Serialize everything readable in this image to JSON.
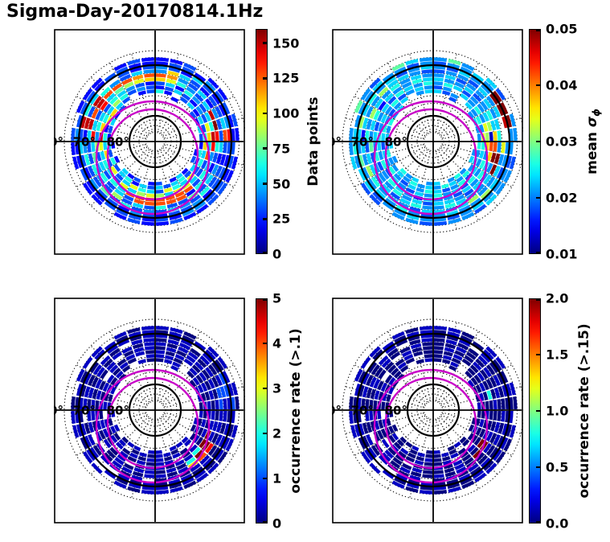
{
  "title": "Sigma-Day-20170814.1Hz",
  "colors": {
    "background": "#ffffff",
    "grid": "#000000",
    "oval_magenta": "#c800c8",
    "colormap": "jet"
  },
  "polar_grid": {
    "lat_tick_labels": [
      "60°",
      "70°",
      "80°"
    ],
    "lat_tick_values": [
      60,
      70,
      80
    ],
    "spoke_step_deg": 15,
    "spoke_count": 24,
    "solid_circle_lats": [
      80,
      65
    ],
    "dotted_circle_lats": [
      87.5,
      85,
      82.5,
      77.5,
      75,
      72.5,
      70,
      67.5,
      62.5,
      60
    ],
    "oval_circles_note": "two magenta model auroral-oval circles offset toward bottom (midnight)"
  },
  "chart_data": [
    {
      "id": "data_points",
      "type": "heatmap",
      "projection": "polar",
      "colorbar_label": "Data points",
      "colormap": "jet",
      "vmin": 0,
      "vmax": 160,
      "colorbar_tick_values": [
        0,
        25,
        50,
        75,
        100,
        125,
        150
      ],
      "colorbar_tick_labels": [
        "0",
        "25",
        "50",
        "75",
        "100",
        "125",
        "150"
      ],
      "sector_width_deg": 10,
      "n_rings": 11,
      "cell_encoding": "hex level 0-15, value = vmin + level/15*(vmax-vmin); '.' = no data; ring 0 = outermost; sector 0 starts at 12 o'clock going clockwise",
      "cells": [
        [
          "223.22",
          ".32.22",
          "332232",
          "232.22",
          ".223.2",
          "22.232"
        ],
        [
          "233243",
          "322332",
          "334423",
          "233322",
          "322433",
          "323322"
        ],
        [
          "432532",
          "24d323",
          "324332",
          "342334",
          "2353e6",
          "5..323"
        ],
        [
          "4a5323",
          "35c323",
          "363453",
          "436373",
          "3642e3",
          "e64354"
        ],
        [
          "cb4352",
          "433524",
          "537336",
          "353834",
          "6335ec",
          "ecccbc"
        ],
        [
          "a96435",
          "efd632",
          "462ccc",
          "cc3536",
          "475d53",
          "d5789a"
        ],
        [
          "352643",
          "56ed45",
          "63cccc",
          "ccc563",
          "538465",
          "365432"
        ],
        [
          "235324",
          "39a5c3",
          "359958",
          "985935",
          "659ea6",
          "586343"
        ],
        [
          "62.352",
          "536a56",
          "395693",
          "569539",
          "3a5629",
          "a53.23"
        ],
        [
          "..2..3",
          "253263",
          "536535",
          "352653",
          "635235",
          "23...."
        ],
        [
          "......",
          "....23",
          ".252.3",
          "2.325.",
          "2.2...",
          "......"
        ]
      ]
    },
    {
      "id": "mean_sigma_phi",
      "type": "heatmap",
      "projection": "polar",
      "colorbar_label": "mean σϕ",
      "colorbar_label_parts": {
        "prefix": "mean ",
        "symbol": "σ",
        "subscript": "ϕ"
      },
      "colormap": "jet",
      "vmin": 0.01,
      "vmax": 0.05,
      "colorbar_tick_values": [
        0.01,
        0.02,
        0.03,
        0.04,
        0.05
      ],
      "colorbar_tick_labels": [
        "0.01",
        "0.02",
        "0.03",
        "0.04",
        "0.05"
      ],
      "sector_width_deg": 10,
      "n_rings": 11,
      "cell_encoding": "hex level 0-15, value = vmin + level/15*(vmax-vmin); '.' = no data",
      "cells": [
        [
          "474.53",
          ".44.34",
          "453443",
          "344.33",
          ".544.7",
          "43.754"
        ],
        [
          "34454f",
          "ff4434",
          "445434",
          "454435",
          "546544",
          "454434"
        ],
        [
          "43544f",
          "fe.443",
          "584454",
          "346454",
          "474585",
          "645345"
        ],
        [
          "344354",
          "5..945",
          "448545",
          "534546",
          "845254",
          "485543"
        ],
        [
          "453445",
          "4564ff",
          "544564",
          "465354",
          "553648",
          "546454"
        ],
        [
          "544534",
          "65acf4",
          "453455",
          "354644",
          "437456",
          "254465"
        ],
        [
          "465344",
          "581ca5",
          "645344",
          "524564",
          "364534",
          "536546"
        ],
        [
          "34.546",
          "498a46",
          "463546",
          "453453",
          "645645",
          "463454"
        ],
        [
          "534.54",
          "649654",
          "536435",
          "645346",
          "453564",
          "345.45"
        ],
        [
          "..3..4",
          "544645",
          "464564",
          "546454",
          "464546",
          "45...."
        ],
        [
          "......",
          "....45",
          ".464.5",
          "4.546.",
          "4.5...",
          "......"
        ]
      ]
    },
    {
      "id": "occurrence_rate_gt_p1",
      "type": "heatmap",
      "projection": "polar",
      "colorbar_label": "occurrence rate (>.1)",
      "colormap": "jet",
      "vmin": 0,
      "vmax": 5,
      "colorbar_tick_values": [
        0,
        1,
        2,
        3,
        4,
        5
      ],
      "colorbar_tick_labels": [
        "0",
        "1",
        "2",
        "3",
        "4",
        "5"
      ],
      "sector_width_deg": 10,
      "n_rings": 11,
      "cell_encoding": "hex level 0-15, value = vmin + level/15*(vmax-vmin); '.' = no data",
      "cells": [
        [
          "110.11",
          ".10.11",
          "011011",
          "101.11",
          ".110.1",
          "11.101"
        ],
        [
          "010110",
          "113101",
          "101101",
          "1101.1",
          "011010",
          ".11011"
        ],
        [
          "101.10",
          "331011",
          "010110",
          "101..1",
          "110101",
          "0.1101"
        ],
        [
          "011010",
          "131101",
          "011010",
          ".10110",
          "10.110",
          "110.11"
        ],
        [
          "101101",
          "033110",
          "dca101",
          "101101",
          ".11010",
          "101101"
        ],
        [
          "010110",
          "101011",
          "ff6010",
          "11010.",
          "101101",
          "01.011"
        ],
        [
          "101101",
          "01011f",
          "f61101",
          "10.101",
          "011010",
          ".10110"
        ],
        [
          "110.10",
          "101101",
          "010.11",
          "0101.0",
          "110101",
          "1010.1"
        ],
        [
          "011.01",
          "101010",
          "1.0101",
          "101011",
          "01.101",
          "010.10"
        ],
        [
          "..1..0",
          "110101",
          "01.011",
          "010.10",
          "101101",
          "10...."
        ],
        [
          "......",
          "....10",
          ".111.1",
          "1.110.",
          "1.1...",
          "......"
        ]
      ]
    },
    {
      "id": "occurrence_rate_gt_p15",
      "type": "heatmap",
      "projection": "polar",
      "colorbar_label": "occurrence rate (>.15)",
      "colormap": "jet",
      "vmin": 0.0,
      "vmax": 2.0,
      "colorbar_tick_values": [
        0.0,
        0.5,
        1.0,
        1.5,
        2.0
      ],
      "colorbar_tick_labels": [
        "0.0",
        "0.5",
        "1.0",
        "1.5",
        "2.0"
      ],
      "sector_width_deg": 10,
      "n_rings": 11,
      "cell_encoding": "hex level 0-15, value = vmin + level/15*(vmax-vmin); '.' = no data",
      "cells": [
        [
          "110.11",
          ".10.10",
          "011010",
          "101.11",
          ".110.1",
          "11.101"
        ],
        [
          "010010",
          "010101",
          "101001",
          "0101.1",
          "010010",
          ".01011"
        ],
        [
          "001.10",
          "010010",
          "010100",
          "101..1",
          "010101",
          "0.1001"
        ],
        [
          "010010",
          "100101",
          "001010",
          ".10010",
          "10.010",
          "010.01"
        ],
        [
          "001001",
          "010010",
          "100101",
          "001010",
          ".01001",
          "010010"
        ],
        [
          "010010",
          "001001",
          "ff0100",
          "01001.",
          "001001",
          "00.100"
        ],
        [
          "001001",
          "060001",
          "f00101",
          "00.001",
          "010010",
          ".00100"
        ],
        [
          "010.00",
          "100100",
          "010.10",
          "01001.",
          "001001",
          "0010.0"
        ],
        [
          "001.00",
          "010010",
          "0.0100",
          "100100",
          "01.010",
          "100.01"
        ],
        [
          "..0..1",
          "001001",
          "00.010",
          "010.01",
          "001001",
          "00...."
        ],
        [
          "......",
          "....00",
          ".010.1",
          "0.100.",
          "0.0...",
          "......"
        ]
      ]
    }
  ]
}
